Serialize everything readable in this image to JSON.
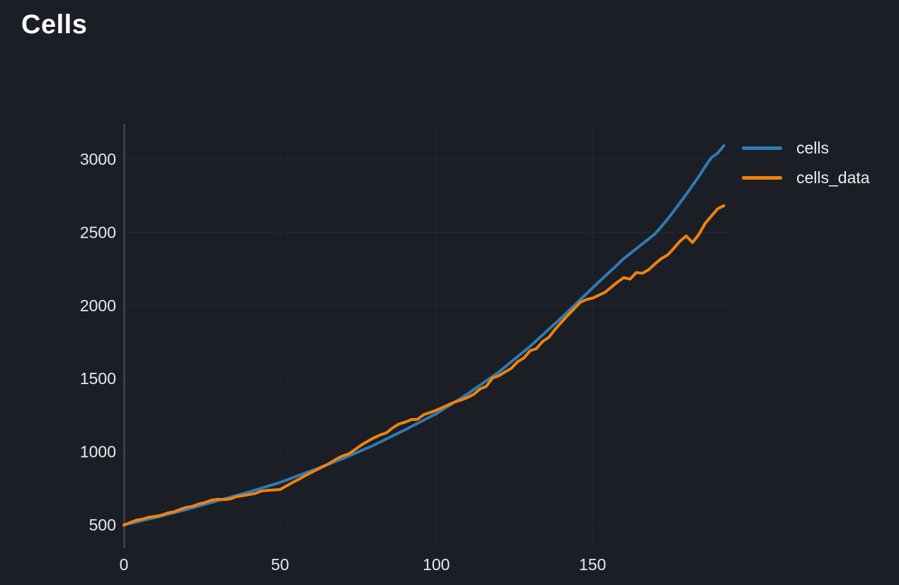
{
  "page": {
    "background_color": "#1b1e25",
    "gridline_color": "#262931",
    "axis_line_color": "#4c4f58",
    "tick_text_color": "#e8eaed",
    "title_color": "#fafbfc"
  },
  "chart_data": {
    "type": "line",
    "title": "Cells",
    "xlabel": "",
    "ylabel": "",
    "grid": true,
    "legend_position": "top-right-outside",
    "x_ticks": [
      0,
      50,
      100,
      150
    ],
    "y_ticks": [
      500,
      1000,
      1500,
      2000,
      2500,
      3000
    ],
    "x_range": [
      0,
      194
    ],
    "y_range": [
      340,
      3240
    ],
    "x": [
      0,
      2,
      4,
      6,
      8,
      10,
      12,
      14,
      16,
      18,
      20,
      22,
      24,
      26,
      28,
      30,
      32,
      34,
      36,
      38,
      40,
      42,
      44,
      46,
      48,
      50,
      52,
      54,
      56,
      58,
      60,
      62,
      64,
      66,
      68,
      70,
      72,
      74,
      76,
      78,
      80,
      82,
      84,
      86,
      88,
      90,
      92,
      94,
      96,
      98,
      100,
      102,
      104,
      106,
      108,
      110,
      112,
      114,
      116,
      118,
      120,
      122,
      124,
      126,
      128,
      130,
      132,
      134,
      136,
      138,
      140,
      142,
      144,
      146,
      148,
      150,
      152,
      154,
      156,
      158,
      160,
      162,
      164,
      166,
      168,
      170,
      172,
      174,
      176,
      178,
      180,
      182,
      184,
      186,
      188,
      190,
      192
    ],
    "series": [
      {
        "name": "cells",
        "color": "#2e7bb4",
        "values": [
          500,
          510,
          520,
          530,
          540,
          550,
          561,
          572,
          583,
          594,
          605,
          617,
          629,
          641,
          653,
          665,
          677,
          689,
          701,
          713,
          725,
          738,
          751,
          764,
          777,
          790,
          806,
          822,
          838,
          854,
          870,
          886,
          903,
          919,
          936,
          952,
          971,
          989,
          1008,
          1026,
          1045,
          1066,
          1087,
          1108,
          1129,
          1150,
          1172,
          1194,
          1216,
          1238,
          1260,
          1287,
          1314,
          1341,
          1368,
          1395,
          1425,
          1455,
          1485,
          1515,
          1545,
          1580,
          1615,
          1650,
          1685,
          1720,
          1759,
          1798,
          1837,
          1876,
          1915,
          1956,
          1997,
          2038,
          2079,
          2120,
          2160,
          2200,
          2240,
          2280,
          2320,
          2354,
          2388,
          2422,
          2456,
          2490,
          2538,
          2590,
          2645,
          2702,
          2760,
          2820,
          2882,
          2948,
          3010,
          3040,
          3092
        ]
      },
      {
        "name": "cells_data",
        "color": "#f0820f",
        "values": [
          498,
          516,
          532,
          539,
          552,
          558,
          566,
          581,
          589,
          606,
          620,
          627,
          643,
          653,
          669,
          675,
          673,
          677,
          693,
          699,
          707,
          714,
          731,
          736,
          739,
          742,
          766,
          790,
          812,
          836,
          858,
          880,
          901,
          923,
          950,
          972,
          985,
          1015,
          1046,
          1071,
          1095,
          1114,
          1129,
          1163,
          1189,
          1202,
          1220,
          1222,
          1254,
          1268,
          1284,
          1303,
          1322,
          1341,
          1354,
          1371,
          1393,
          1429,
          1447,
          1505,
          1520,
          1545,
          1570,
          1615,
          1640,
          1690,
          1704,
          1753,
          1782,
          1836,
          1885,
          1931,
          1975,
          2020,
          2040,
          2050,
          2070,
          2090,
          2125,
          2160,
          2190,
          2180,
          2225,
          2220,
          2245,
          2285,
          2320,
          2345,
          2390,
          2440,
          2475,
          2430,
          2485,
          2560,
          2610,
          2660,
          2682
        ]
      }
    ]
  }
}
